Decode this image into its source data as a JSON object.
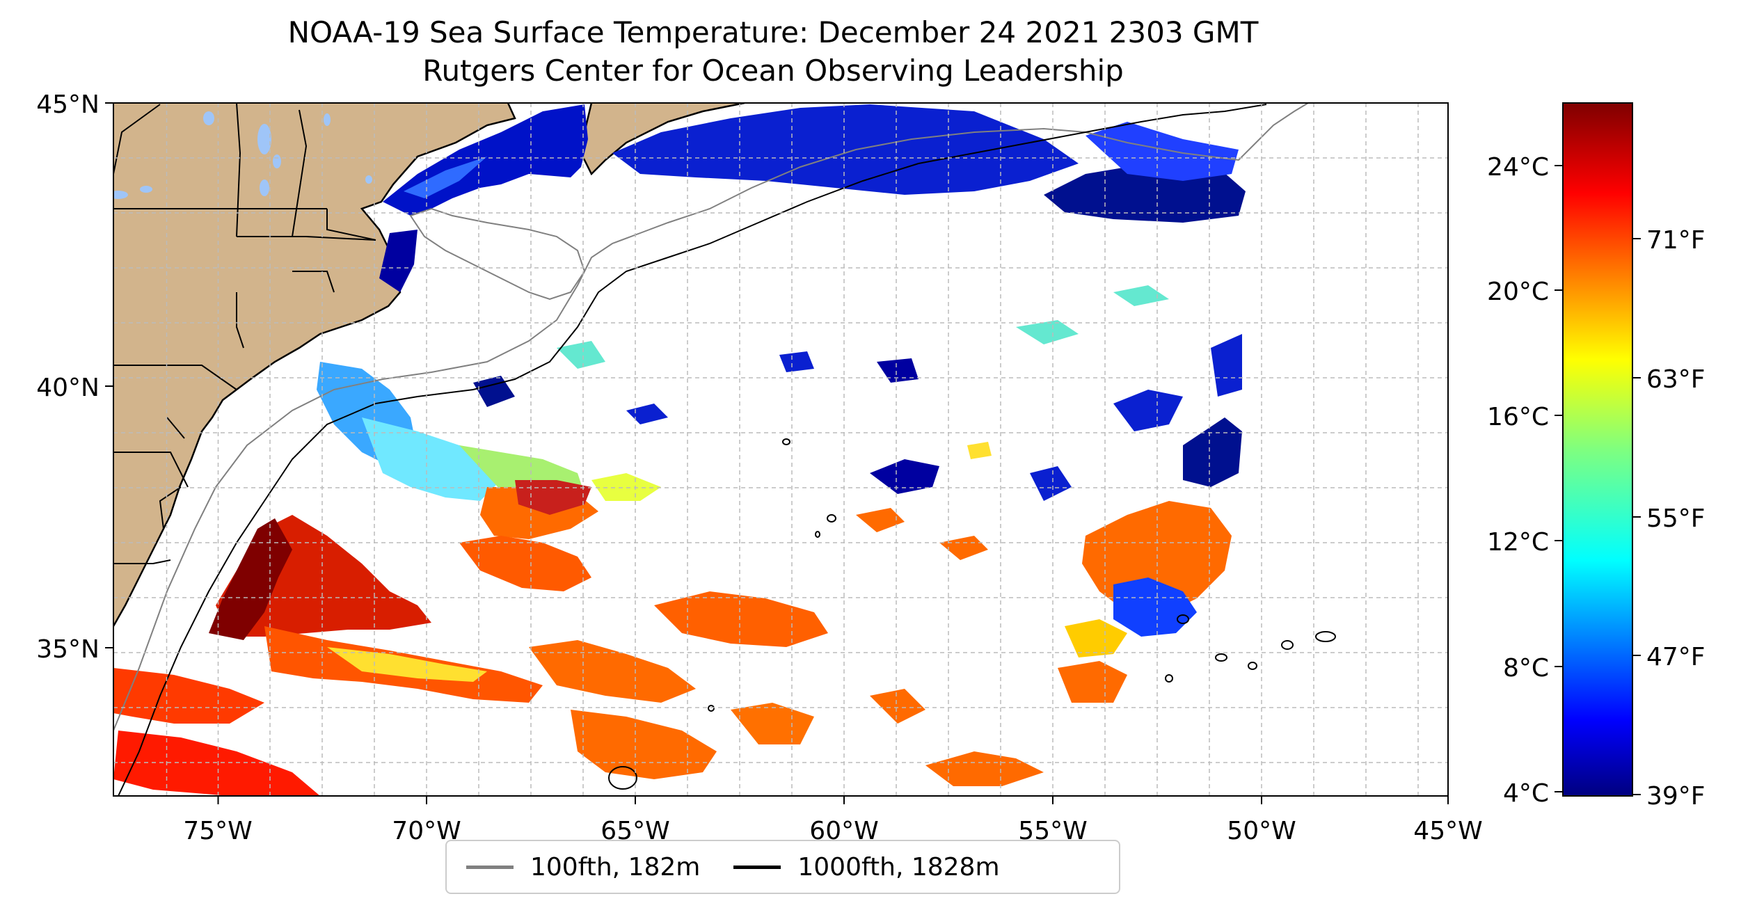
{
  "title": {
    "line1": "NOAA-19 Sea Surface Temperature: December 24 2021 2303 GMT",
    "line2": "Rutgers Center for Ocean Observing Leadership"
  },
  "map": {
    "lon_range": [
      -77,
      -45
    ],
    "lat_range": [
      32.4,
      45
    ],
    "lat_labels": [
      "45°N",
      "40°N",
      "35°N"
    ],
    "lon_labels": [
      "75°W",
      "70°W",
      "65°W",
      "60°W",
      "55°W",
      "50°W",
      "45°W"
    ],
    "land_color": "#d2b48c",
    "lake_color": "#9fc5f8",
    "grid": "dashed"
  },
  "legend": {
    "items": [
      {
        "label": "100fth, 182m",
        "color": "#808080"
      },
      {
        "label": "1000fth, 1828m",
        "color": "#000000"
      }
    ]
  },
  "colorbar": {
    "colormap": "jet",
    "range_c": [
      4,
      26
    ],
    "celsius_labels": [
      "24°C",
      "20°C",
      "16°C",
      "12°C",
      "8°C",
      "4°C"
    ],
    "fahrenheit_labels": [
      "71°F",
      "63°F",
      "55°F",
      "47°F",
      "39°F"
    ]
  }
}
